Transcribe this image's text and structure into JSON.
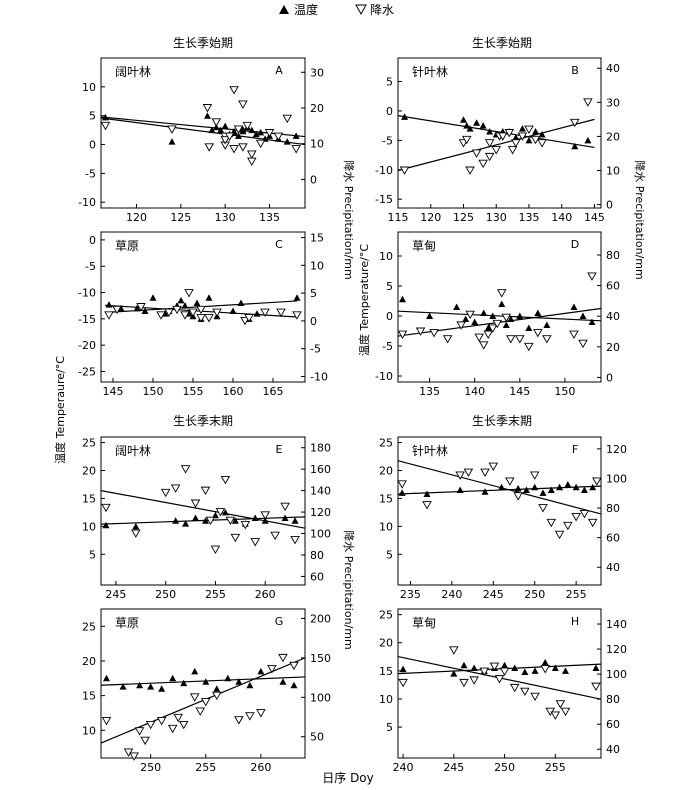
{
  "legend": {
    "temperature": "温度",
    "precipitation": "降水"
  },
  "section_titles": [
    "生长季始期",
    "生长季始期",
    "生长季末期",
    "生长季末期"
  ],
  "axis_labels": {
    "left": "温度 Temperaure/°C",
    "right_top": "降水 Precipitation/mm",
    "right_bottom": "降水 Precipitation/mm",
    "left_bottom_right": "温度 Temperature/°C",
    "x": "日序 Doy"
  },
  "chart_data": [
    {
      "id": "A",
      "letter": "A",
      "veg": "阔叶林",
      "type": "scatter",
      "xlim": [
        116,
        139
      ],
      "xticks": [
        120,
        125,
        130,
        135
      ],
      "ylim_temp": [
        -11,
        15
      ],
      "yticks_temp": [
        -10,
        -5,
        0,
        5,
        10
      ],
      "ylim_precip": [
        -8,
        34
      ],
      "yticks_precip": [
        0,
        10,
        20,
        30
      ],
      "series": [
        {
          "name": "温度",
          "x": [
            116.5,
            124,
            128,
            128.5,
            129,
            129.5,
            130,
            130.5,
            131,
            131,
            131.5,
            132,
            132,
            132.5,
            133,
            133.5,
            134,
            134.5,
            135,
            136,
            137,
            138
          ],
          "values": [
            4.7,
            0.5,
            5.0,
            2.5,
            3.0,
            2.5,
            3.2,
            1.8,
            2.3,
            2.0,
            1.5,
            2.6,
            2.3,
            3.0,
            2.5,
            1.8,
            2.1,
            1.0,
            1.5,
            1.0,
            0.5,
            1.5
          ]
        },
        {
          "name": "降水",
          "x": [
            116.5,
            124,
            128,
            128.2,
            129,
            130,
            130,
            130,
            130.5,
            131,
            131,
            131.5,
            132,
            132,
            132.5,
            133,
            133,
            134,
            135,
            136,
            137,
            138
          ],
          "values": [
            15,
            14,
            20,
            9,
            16,
            9.5,
            12,
            11,
            12,
            8.5,
            25,
            14,
            21,
            9,
            15,
            7,
            5,
            10,
            13,
            12,
            17,
            8.5
          ]
        }
      ],
      "fit_temp": [
        [
          116,
          4.6
        ],
        [
          139,
          0.0
        ]
      ],
      "fit_precip": [
        [
          116,
          17.5
        ],
        [
          139,
          12.0
        ]
      ]
    },
    {
      "id": "B",
      "letter": "B",
      "veg": "针叶林",
      "type": "scatter",
      "xlim": [
        115,
        146
      ],
      "xticks": [
        115,
        120,
        125,
        130,
        135,
        140,
        145
      ],
      "ylim_temp": [
        -16.5,
        9
      ],
      "yticks_temp": [
        -15,
        -10,
        -5,
        0,
        5
      ],
      "ylim_precip": [
        -1,
        43
      ],
      "yticks_precip": [
        0,
        10,
        20,
        30,
        40
      ],
      "series": [
        {
          "name": "温度",
          "x": [
            116,
            125,
            125.5,
            126,
            127,
            128,
            129,
            130,
            131,
            132,
            133,
            134,
            135,
            136,
            137,
            142,
            144
          ],
          "values": [
            -1.0,
            -1.5,
            -2.5,
            -3.0,
            -2.0,
            -2.5,
            -3.5,
            -4.0,
            -3.5,
            -3.5,
            -4.5,
            -3.0,
            -5.0,
            -3.5,
            -4.0,
            -6.0,
            -5.0
          ]
        },
        {
          "name": "降水",
          "x": [
            116,
            125,
            125.5,
            126,
            127,
            128,
            129,
            129,
            130,
            130.5,
            131,
            132,
            132.5,
            133,
            134,
            135,
            136,
            137,
            142,
            144
          ],
          "values": [
            10,
            18,
            19,
            10,
            15,
            12,
            18,
            14,
            16,
            20,
            20,
            21,
            16,
            18,
            20,
            22,
            19,
            18,
            24,
            30
          ]
        }
      ],
      "fit_temp": [
        [
          115,
          -0.8
        ],
        [
          145,
          -6.2
        ]
      ],
      "fit_precip": [
        [
          115,
          10.0
        ],
        [
          145,
          25.0
        ]
      ]
    },
    {
      "id": "C",
      "letter": "C",
      "veg": "草原",
      "type": "scatter",
      "xlim": [
        143.5,
        169
      ],
      "xticks": [
        145,
        150,
        155,
        160,
        165
      ],
      "ylim_temp": [
        -27,
        1.5
      ],
      "yticks_temp": [
        -25,
        -20,
        -15,
        -10,
        -5,
        0
      ],
      "ylim_precip": [
        -11,
        16
      ],
      "yticks_precip": [
        -10,
        -5,
        0,
        5,
        10,
        15
      ],
      "series": [
        {
          "name": "温度",
          "x": [
            144.5,
            146,
            148,
            149,
            150,
            151.5,
            152,
            153,
            153.5,
            154,
            154.5,
            155,
            155.5,
            156,
            157,
            158,
            160,
            161,
            162,
            163,
            168
          ],
          "values": [
            -12.3,
            -13.0,
            -13.0,
            -13.5,
            -11.0,
            -14.0,
            -13.5,
            -12.5,
            -11.5,
            -12.5,
            -14.0,
            -14.5,
            -12.0,
            -15.0,
            -11.0,
            -14.5,
            -13.5,
            -12.0,
            -15.0,
            -14.0,
            -11.0
          ]
        },
        {
          "name": "降水",
          "x": [
            144.5,
            145.5,
            148.5,
            151,
            152,
            153,
            154,
            154.5,
            155,
            156,
            156,
            157,
            158,
            161.5,
            162,
            164,
            166,
            168
          ],
          "values": [
            1.0,
            2.0,
            2.5,
            1.0,
            1.5,
            2.0,
            1.0,
            5.0,
            1.5,
            2.0,
            0.5,
            0.5,
            1.5,
            0.0,
            0.5,
            1.5,
            1.5,
            1.0
          ]
        }
      ],
      "fit_temp": [
        [
          144,
          -13.8
        ],
        [
          168,
          -11.6
        ]
      ],
      "fit_precip": [
        [
          144,
          2.8
        ],
        [
          168,
          0.7
        ]
      ]
    },
    {
      "id": "D",
      "letter": "D",
      "veg": "草甸",
      "type": "scatter",
      "xlim": [
        131.5,
        154
      ],
      "xticks": [
        135,
        140,
        145,
        150
      ],
      "ylim_temp": [
        -11,
        14
      ],
      "yticks_temp": [
        -10,
        -5,
        0,
        5,
        10
      ],
      "ylim_precip": [
        -3,
        95
      ],
      "yticks_precip": [
        0,
        20,
        40,
        60,
        80
      ],
      "series": [
        {
          "name": "温度",
          "x": [
            132,
            135,
            138,
            139,
            140,
            141,
            141.5,
            142,
            143,
            143.5,
            144,
            145,
            146,
            147,
            148,
            151,
            152,
            153
          ],
          "values": [
            2.8,
            0.0,
            1.5,
            -0.5,
            -1.0,
            0.5,
            -2.0,
            0.0,
            2.0,
            -1.5,
            -0.5,
            0.0,
            -2.0,
            0.5,
            -1.5,
            1.5,
            0.0,
            -1.0
          ]
        },
        {
          "name": "降水",
          "x": [
            132,
            134,
            135.5,
            137,
            138.5,
            139.5,
            140.5,
            141,
            141.5,
            142,
            142.5,
            143,
            143.5,
            144,
            145,
            146,
            147,
            148,
            151,
            152,
            153
          ],
          "values": [
            28,
            30,
            29,
            25,
            34,
            41,
            26,
            21,
            28,
            32,
            35,
            55,
            39,
            25,
            25,
            20,
            29,
            25,
            28,
            22,
            66
          ]
        }
      ],
      "fit_temp": [
        [
          131.5,
          0.8
        ],
        [
          154,
          -0.8
        ]
      ],
      "fit_precip": [
        [
          131.5,
          27.0
        ],
        [
          154,
          45.0
        ]
      ]
    },
    {
      "id": "E",
      "letter": "E",
      "veg": "阔叶林",
      "type": "scatter",
      "xlim": [
        243.5,
        264
      ],
      "xticks": [
        245,
        250,
        255,
        260
      ],
      "ylim_temp": [
        -0.5,
        26
      ],
      "yticks_temp": [
        5,
        10,
        15,
        20,
        25
      ],
      "ylim_precip": [
        52,
        190
      ],
      "yticks_precip": [
        60,
        80,
        100,
        120,
        140,
        160,
        180
      ],
      "series": [
        {
          "name": "温度",
          "x": [
            244,
            247,
            251,
            252,
            253,
            254,
            255,
            256,
            257,
            258,
            259,
            260,
            262,
            263
          ],
          "values": [
            10.2,
            10.0,
            11.0,
            10.5,
            11.5,
            11.0,
            12.0,
            12.5,
            11.0,
            10.5,
            11.5,
            11.0,
            11.5,
            11.0
          ]
        },
        {
          "name": "降水",
          "x": [
            244,
            247,
            250,
            251,
            252,
            253,
            254,
            254.5,
            255,
            255.5,
            256,
            256.5,
            257,
            258,
            259,
            260,
            261,
            262,
            263
          ],
          "values": [
            124,
            100,
            138,
            142,
            160,
            128,
            140,
            112,
            85,
            120,
            150,
            112,
            96,
            108,
            92,
            117,
            98,
            125,
            94
          ]
        }
      ],
      "fit_temp": [
        [
          243.5,
          10.4
        ],
        [
          264,
          11.7
        ]
      ],
      "fit_precip": [
        [
          243.5,
          140
        ],
        [
          264,
          105
        ]
      ]
    },
    {
      "id": "F",
      "letter": "F",
      "veg": "针叶林",
      "type": "scatter",
      "xlim": [
        233.5,
        258
      ],
      "xticks": [
        235,
        240,
        245,
        250,
        255
      ],
      "ylim_temp": [
        -0.5,
        26
      ],
      "yticks_temp": [
        5,
        10,
        15,
        20,
        25
      ],
      "ylim_precip": [
        28,
        128
      ],
      "yticks_precip": [
        40,
        60,
        80,
        100,
        120
      ],
      "series": [
        {
          "name": "温度",
          "x": [
            234,
            237,
            241,
            244,
            246,
            248,
            249,
            250,
            251,
            252,
            253,
            254,
            255,
            256,
            257
          ],
          "values": [
            16.0,
            15.8,
            16.5,
            16.2,
            17.0,
            16.8,
            16.5,
            17.0,
            16.0,
            16.5,
            17.0,
            17.5,
            17.0,
            16.5,
            17.0
          ]
        },
        {
          "name": "降水",
          "x": [
            234,
            237,
            241,
            242,
            244,
            245,
            247,
            248,
            250,
            251,
            252,
            253,
            254,
            255,
            256,
            257,
            257.5
          ],
          "values": [
            96,
            82,
            102,
            104,
            104,
            108,
            98,
            88,
            102,
            80,
            70,
            62,
            68,
            74,
            76,
            70,
            98
          ]
        }
      ],
      "fit_temp": [
        [
          233.5,
          15.8
        ],
        [
          258,
          17.2
        ]
      ],
      "fit_precip": [
        [
          233.5,
          112
        ],
        [
          258,
          76
        ]
      ]
    },
    {
      "id": "G",
      "letter": "G",
      "veg": "草原",
      "type": "scatter",
      "xlim": [
        245.5,
        264
      ],
      "xticks": [
        250,
        255,
        260
      ],
      "ylim_temp": [
        6,
        27.5
      ],
      "yticks_temp": [
        10,
        15,
        20,
        25
      ],
      "ylim_precip": [
        23,
        212
      ],
      "yticks_precip": [
        50,
        100,
        150,
        200
      ],
      "series": [
        {
          "name": "温度",
          "x": [
            246,
            247.5,
            249,
            250,
            251,
            252,
            253,
            254,
            255,
            256,
            257,
            258,
            259,
            260,
            262,
            263
          ],
          "values": [
            17.5,
            16.3,
            16.5,
            16.3,
            16.0,
            17.5,
            16.8,
            18.5,
            17.0,
            16.0,
            17.5,
            17.0,
            16.5,
            18.5,
            17.0,
            16.5
          ]
        },
        {
          "name": "降水",
          "x": [
            246,
            248,
            248.5,
            249,
            249.5,
            250,
            251,
            252,
            252.5,
            253,
            254,
            254.5,
            255,
            256,
            258,
            259,
            260,
            261,
            262,
            263
          ],
          "values": [
            70,
            30,
            25,
            57,
            45,
            65,
            70,
            60,
            74,
            65,
            100,
            82,
            94,
            102,
            71,
            76,
            80,
            136,
            150,
            140
          ]
        }
      ],
      "fit_temp": [
        [
          245.5,
          16.5
        ],
        [
          264,
          17.7
        ]
      ],
      "fit_precip": [
        [
          245.5,
          42
        ],
        [
          264,
          150
        ]
      ]
    },
    {
      "id": "H",
      "letter": "H",
      "veg": "草甸",
      "type": "scatter",
      "xlim": [
        239.5,
        259.5
      ],
      "xticks": [
        240,
        245,
        250,
        255
      ],
      "ylim_temp": [
        -0.5,
        26
      ],
      "yticks_temp": [
        5,
        10,
        15,
        20,
        25
      ],
      "ylim_precip": [
        33,
        152
      ],
      "yticks_precip": [
        40,
        60,
        80,
        100,
        120,
        140
      ],
      "series": [
        {
          "name": "温度",
          "x": [
            240,
            245,
            246,
            247,
            248,
            249,
            250,
            251,
            252,
            253,
            254,
            255,
            256,
            259
          ],
          "values": [
            15.3,
            14.5,
            16.0,
            15.5,
            15.0,
            15.5,
            16.0,
            15.5,
            14.8,
            15.0,
            16.5,
            15.5,
            15.0,
            15.5
          ]
        },
        {
          "name": "降水",
          "x": [
            240,
            245,
            246,
            247,
            248,
            249,
            249.5,
            250,
            251,
            252,
            253,
            254,
            254.5,
            255,
            255.5,
            256,
            259
          ],
          "values": [
            93,
            119,
            93,
            95,
            102,
            106,
            96,
            102,
            89,
            86,
            82,
            104,
            70,
            67,
            76,
            70,
            90
          ]
        }
      ],
      "fit_temp": [
        [
          239.5,
          14.5
        ],
        [
          259.5,
          16.2
        ]
      ],
      "fit_precip": [
        [
          239.5,
          114
        ],
        [
          259.5,
          80
        ]
      ]
    }
  ]
}
